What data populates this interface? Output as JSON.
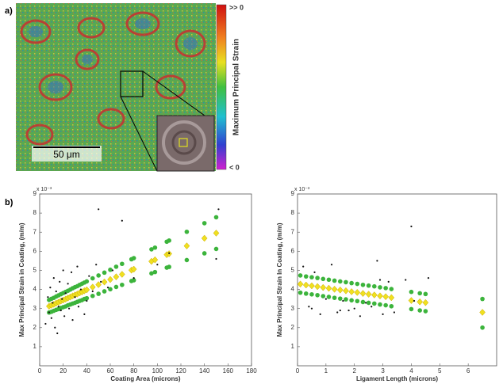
{
  "panel_a": {
    "label": "a)",
    "scale_bar": "50 μm",
    "colorbar": {
      "title": "Maximum Principal Strain",
      "top_label": ">> 0",
      "bottom_label": "< 0"
    }
  },
  "panel_b_label": "b)",
  "chart_data": [
    {
      "type": "scatter",
      "x_label": "Coating Area (microns)",
      "y_label": "Max Principal Strain in Coating, (m/m)",
      "y_exponent_label": "x 10⁻³",
      "xlim": [
        0,
        180
      ],
      "xticks": [
        0,
        20,
        40,
        60,
        80,
        100,
        120,
        140,
        160,
        180
      ],
      "ylim": [
        0,
        9
      ],
      "yticks": [
        1,
        2,
        3,
        4,
        5,
        6,
        7,
        8,
        9
      ],
      "series": [
        {
          "color": "#3cb43c",
          "marker": "circle",
          "x": [
            8,
            10,
            12,
            14,
            16,
            18,
            20,
            22,
            24,
            26,
            28,
            30,
            32,
            34,
            36,
            38,
            40,
            45,
            50,
            55,
            60,
            65,
            70,
            78,
            80,
            95,
            98,
            108,
            110,
            125,
            140,
            150
          ],
          "values": [
            3.45,
            3.51,
            3.56,
            3.63,
            3.69,
            3.75,
            3.81,
            3.87,
            3.93,
            3.99,
            4.06,
            4.12,
            4.17,
            4.24,
            4.3,
            4.36,
            4.42,
            4.58,
            4.73,
            4.88,
            5.03,
            5.19,
            5.34,
            5.58,
            5.64,
            6.1,
            6.19,
            6.5,
            6.56,
            7.02,
            7.47,
            7.78
          ]
        },
        {
          "color": "#3cb43c",
          "marker": "circle",
          "x": [
            8,
            10,
            12,
            14,
            16,
            18,
            20,
            22,
            24,
            26,
            28,
            30,
            32,
            34,
            36,
            38,
            40,
            45,
            50,
            55,
            60,
            65,
            70,
            78,
            80,
            95,
            98,
            108,
            110,
            125,
            140,
            150
          ],
          "values": [
            2.79,
            2.83,
            2.88,
            2.93,
            2.97,
            3.03,
            3.07,
            3.11,
            3.17,
            3.21,
            3.26,
            3.3,
            3.35,
            3.4,
            3.44,
            3.5,
            3.54,
            3.66,
            3.77,
            3.9,
            4.01,
            4.13,
            4.24,
            4.44,
            4.48,
            4.84,
            4.91,
            5.14,
            5.18,
            5.54,
            5.89,
            6.12
          ]
        },
        {
          "color": "#f0e020",
          "marker": "diamond",
          "x": [
            8,
            10,
            12,
            14,
            16,
            18,
            20,
            22,
            24,
            26,
            28,
            30,
            32,
            34,
            36,
            38,
            40,
            45,
            50,
            55,
            60,
            65,
            70,
            78,
            80,
            95,
            98,
            108,
            110,
            125,
            140,
            150
          ],
          "values": [
            3.12,
            3.17,
            3.22,
            3.28,
            3.33,
            3.39,
            3.44,
            3.49,
            3.55,
            3.6,
            3.66,
            3.71,
            3.76,
            3.82,
            3.87,
            3.93,
            3.98,
            4.12,
            4.25,
            4.39,
            4.52,
            4.66,
            4.79,
            5.01,
            5.06,
            5.47,
            5.55,
            5.82,
            5.87,
            6.28,
            6.68,
            6.95
          ]
        },
        {
          "color": "#111111",
          "marker": "dot",
          "x": [
            5,
            7,
            8,
            9,
            10,
            11,
            12,
            13,
            14,
            15,
            16,
            17,
            18,
            19,
            20,
            21,
            22,
            24,
            25,
            27,
            28,
            30,
            32,
            33,
            35,
            38,
            40,
            42,
            45,
            48,
            50,
            52,
            58,
            62,
            70,
            80,
            100,
            110,
            150,
            152
          ],
          "values": [
            2.2,
            3.6,
            2.8,
            4.1,
            2.5,
            3.3,
            4.6,
            2.0,
            3.9,
            1.7,
            3.1,
            4.4,
            2.9,
            3.5,
            5.0,
            2.6,
            3.8,
            4.3,
            3.0,
            4.9,
            2.4,
            3.6,
            5.2,
            3.1,
            4.0,
            2.7,
            3.4,
            4.7,
            3.9,
            5.3,
            8.2,
            4.4,
            4.1,
            5.0,
            7.6,
            4.6,
            5.3,
            5.9,
            5.6,
            8.2
          ]
        }
      ]
    },
    {
      "type": "scatter",
      "x_label": "Ligament Length (microns)",
      "y_label": "Max Principal Strain In Coating, (m/m)",
      "y_exponent_label": "x 10⁻³",
      "xlim": [
        0,
        7
      ],
      "xticks": [
        0,
        1,
        2,
        3,
        4,
        5,
        6
      ],
      "ylim": [
        0,
        9
      ],
      "yticks": [
        1,
        2,
        3,
        4,
        5,
        6,
        7,
        8,
        9
      ],
      "series": [
        {
          "color": "#3cb43c",
          "marker": "circle",
          "x": [
            0.1,
            0.3,
            0.5,
            0.7,
            0.9,
            1.1,
            1.3,
            1.5,
            1.7,
            1.9,
            2.1,
            2.3,
            2.5,
            2.7,
            2.9,
            3.1,
            3.3,
            4.0,
            4.3,
            4.5,
            6.5
          ],
          "values": [
            4.73,
            4.68,
            4.64,
            4.6,
            4.55,
            4.51,
            4.46,
            4.42,
            4.38,
            4.33,
            4.29,
            4.24,
            4.2,
            4.16,
            4.11,
            4.07,
            4.02,
            3.87,
            3.8,
            3.76,
            3.5
          ]
        },
        {
          "color": "#3cb43c",
          "marker": "circle",
          "x": [
            0.1,
            0.3,
            0.5,
            0.7,
            0.9,
            1.1,
            1.3,
            1.5,
            1.7,
            1.9,
            2.1,
            2.3,
            2.5,
            2.7,
            2.9,
            3.1,
            3.3,
            4.0,
            4.3,
            4.5,
            6.5
          ],
          "values": [
            3.83,
            3.78,
            3.74,
            3.7,
            3.65,
            3.61,
            3.56,
            3.52,
            3.48,
            3.43,
            3.39,
            3.34,
            3.3,
            3.26,
            3.21,
            3.17,
            3.12,
            2.97,
            2.9,
            2.86,
            2.0
          ]
        },
        {
          "color": "#f0e020",
          "marker": "diamond",
          "x": [
            0.1,
            0.3,
            0.5,
            0.7,
            0.9,
            1.1,
            1.3,
            1.5,
            1.7,
            1.9,
            2.1,
            2.3,
            2.5,
            2.7,
            2.9,
            3.1,
            3.3,
            4.0,
            4.3,
            4.5,
            6.5
          ],
          "values": [
            4.28,
            4.23,
            4.19,
            4.15,
            4.1,
            4.06,
            4.01,
            3.97,
            3.93,
            3.88,
            3.84,
            3.79,
            3.75,
            3.71,
            3.66,
            3.62,
            3.57,
            3.42,
            3.35,
            3.31,
            2.8
          ]
        },
        {
          "color": "#111111",
          "marker": "dot",
          "x": [
            0.2,
            0.4,
            0.6,
            0.8,
            1.0,
            1.2,
            1.4,
            1.6,
            1.8,
            2.0,
            2.2,
            2.4,
            2.6,
            2.8,
            3.0,
            3.2,
            3.4,
            3.8,
            4.0,
            4.1,
            4.6,
            2.9,
            1.5,
            0.5
          ],
          "values": [
            5.2,
            3.1,
            4.9,
            2.7,
            3.5,
            5.3,
            2.8,
            3.4,
            2.9,
            3.0,
            2.6,
            3.3,
            3.1,
            5.5,
            2.7,
            4.4,
            2.8,
            4.5,
            7.3,
            3.4,
            4.6,
            4.5,
            2.9,
            3.0
          ]
        }
      ]
    }
  ]
}
